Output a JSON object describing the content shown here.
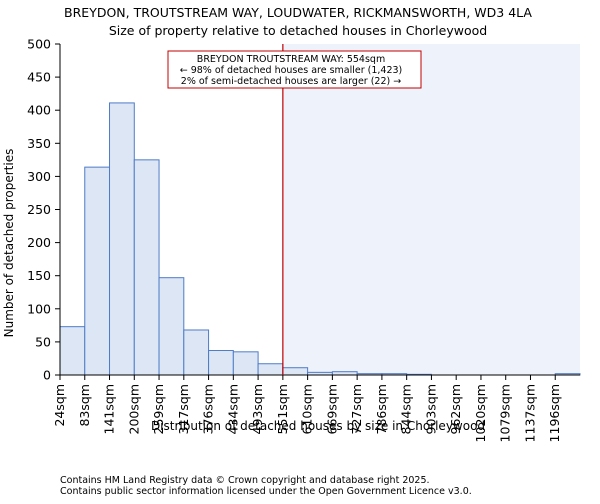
{
  "chart_data": {
    "type": "bar",
    "title": "BREYDON, TROUTSTREAM WAY, LOUDWATER, RICKMANSWORTH, WD3 4LA",
    "subtitle": "Size of property relative to detached houses in Chorleywood",
    "xlabel": "Distribution of detached houses by size in Chorleywood",
    "ylabel": "Number of detached properties",
    "ylim": [
      0,
      500
    ],
    "yticks": [
      0,
      50,
      100,
      150,
      200,
      250,
      300,
      350,
      400,
      450,
      500
    ],
    "categories": [
      "24sqm",
      "83sqm",
      "141sqm",
      "200sqm",
      "259sqm",
      "317sqm",
      "376sqm",
      "434sqm",
      "493sqm",
      "551sqm",
      "610sqm",
      "669sqm",
      "727sqm",
      "786sqm",
      "844sqm",
      "903sqm",
      "962sqm",
      "1020sqm",
      "1079sqm",
      "1137sqm",
      "1196sqm"
    ],
    "values": [
      73,
      314,
      411,
      325,
      147,
      68,
      37,
      35,
      17,
      11,
      4,
      5,
      2,
      2,
      1,
      0,
      0,
      0,
      0,
      0,
      2
    ],
    "bar_color": "#dce6f4",
    "bar_edge_color": "#4f7bc8",
    "highlight_index": 9,
    "highlight_color": "#eef2fb",
    "marker_color": "#c00000",
    "annotation": {
      "line1": "BREYDON TROUTSTREAM WAY: 554sqm",
      "line2": "← 98% of detached houses are smaller (1,423)",
      "line3": "2% of semi-detached houses are larger (22) →"
    }
  },
  "footer": {
    "line1": "Contains HM Land Registry data © Crown copyright and database right 2025.",
    "line2": "Contains public sector information licensed under the Open Government Licence v3.0."
  }
}
